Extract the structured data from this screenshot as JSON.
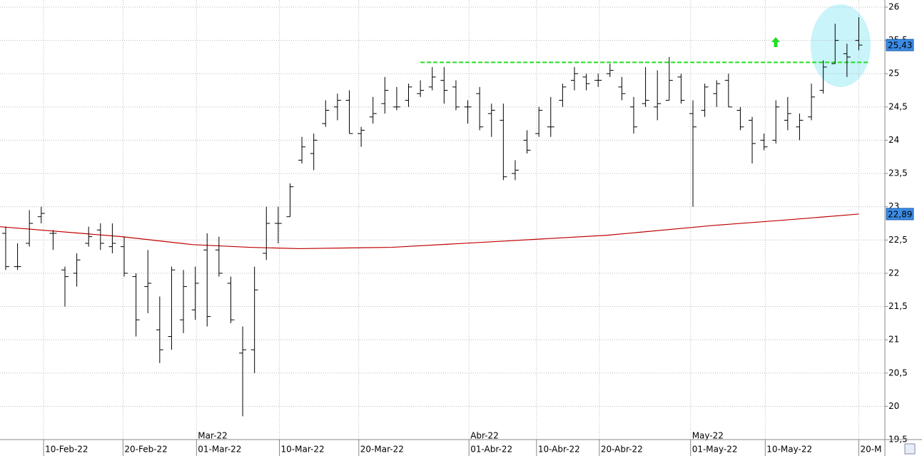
{
  "chart_data": {
    "type": "ohlc",
    "open": [
      22.6,
      22.1,
      22.45,
      22.85,
      22.6,
      22.05,
      22.0,
      22.45,
      22.65,
      22.4,
      22.4,
      21.95,
      21.8,
      21.15,
      21.05,
      21.3,
      21.45,
      22.35,
      22.35,
      21.85,
      20.8,
      20.85,
      22.3,
      22.75,
      22.85,
      23.7,
      23.8,
      24.25,
      24.5,
      24.6,
      24.1,
      24.35,
      24.55,
      24.5,
      24.6,
      24.7,
      24.8,
      24.9,
      24.8,
      24.5,
      24.7,
      24.4,
      24.3,
      23.5,
      24.0,
      24.1,
      24.2,
      24.6,
      24.9,
      24.95,
      24.9,
      25.0,
      24.8,
      24.5,
      24.55,
      24.5,
      24.6,
      24.95,
      24.4,
      24.45,
      24.7,
      24.9,
      24.45,
      24.3,
      24.0,
      24.0,
      24.3,
      24.2,
      24.35,
      24.75,
      25.15,
      25.3,
      25.5
    ],
    "high": [
      22.7,
      22.45,
      22.95,
      23.0,
      22.65,
      22.1,
      22.3,
      22.7,
      22.75,
      22.75,
      22.55,
      22.0,
      22.35,
      21.65,
      22.1,
      22.05,
      22.1,
      22.6,
      22.55,
      21.95,
      21.2,
      22.1,
      23.0,
      23.0,
      23.35,
      24.05,
      24.1,
      24.6,
      24.7,
      24.75,
      24.2,
      24.65,
      24.95,
      24.8,
      24.85,
      24.9,
      25.1,
      25.1,
      24.9,
      24.6,
      24.8,
      24.55,
      24.55,
      23.7,
      24.15,
      24.5,
      24.65,
      24.85,
      25.1,
      25.0,
      25.0,
      25.15,
      24.95,
      24.65,
      25.1,
      25.05,
      25.25,
      25.0,
      24.6,
      24.85,
      24.9,
      25.0,
      24.5,
      24.35,
      24.1,
      24.6,
      24.65,
      24.4,
      24.85,
      25.2,
      25.75,
      25.45,
      25.85
    ],
    "low": [
      22.05,
      22.05,
      22.4,
      22.75,
      22.35,
      21.5,
      21.8,
      22.4,
      22.35,
      22.3,
      21.95,
      21.05,
      21.4,
      20.65,
      20.85,
      21.1,
      21.3,
      21.2,
      21.95,
      21.25,
      19.85,
      20.5,
      22.2,
      22.45,
      22.85,
      23.65,
      23.55,
      24.2,
      24.3,
      24.1,
      23.9,
      24.25,
      24.4,
      24.45,
      24.5,
      24.65,
      24.75,
      24.55,
      24.45,
      24.25,
      24.15,
      24.05,
      23.4,
      23.4,
      23.8,
      24.05,
      24.05,
      24.5,
      24.75,
      24.75,
      24.8,
      24.95,
      24.6,
      24.1,
      24.5,
      24.3,
      24.6,
      24.55,
      23.0,
      24.35,
      24.5,
      24.5,
      24.15,
      23.65,
      23.85,
      23.95,
      24.15,
      24.0,
      24.3,
      24.7,
      25.15,
      24.95,
      25.35
    ],
    "close": [
      22.1,
      22.1,
      22.75,
      22.9,
      22.6,
      21.95,
      22.2,
      22.55,
      22.45,
      22.45,
      22.0,
      21.3,
      21.85,
      20.85,
      22.05,
      21.8,
      21.85,
      21.35,
      22.0,
      21.3,
      20.85,
      21.75,
      22.75,
      22.75,
      23.3,
      23.9,
      24.0,
      24.45,
      24.6,
      24.1,
      24.15,
      24.4,
      24.75,
      24.5,
      24.8,
      24.75,
      24.95,
      24.75,
      24.5,
      24.5,
      24.2,
      24.45,
      23.45,
      23.55,
      23.85,
      24.45,
      24.2,
      24.8,
      25.0,
      24.85,
      24.9,
      25.05,
      24.7,
      24.2,
      24.6,
      24.55,
      24.9,
      24.6,
      24.2,
      24.8,
      24.85,
      24.5,
      24.2,
      23.95,
      23.9,
      24.5,
      24.4,
      24.3,
      24.65,
      25.1,
      25.5,
      25.25,
      25.43
    ],
    "close_label": "25,43",
    "moving_average": {
      "color": "#c00000",
      "x": [
        -0.5,
        9.8,
        15.8,
        20.6,
        24.8,
        32.6,
        41.7,
        50.7,
        59.8,
        65.8,
        72
      ],
      "values": [
        22.7,
        22.55,
        22.43,
        22.39,
        22.37,
        22.39,
        22.48,
        22.57,
        22.72,
        22.8,
        22.89
      ],
      "last_label": "22,89"
    },
    "resistance": {
      "value": 25.17,
      "x": [
        35,
        72.8
      ],
      "color": "#22dd22"
    },
    "xlim": [
      -0.48,
      74.2
    ],
    "ylim": [
      19.5,
      26
    ],
    "yticks": [
      {
        "value": 19.5,
        "label": "19,5"
      },
      20,
      {
        "value": 20.5,
        "label": "20,5"
      },
      21,
      {
        "value": 21.5,
        "label": "21,5"
      },
      22,
      {
        "value": 22.5,
        "label": "22,5"
      },
      23,
      {
        "value": 23.5,
        "label": "23,5"
      },
      24,
      {
        "value": 24.5,
        "label": "24,5"
      },
      25,
      {
        "value": 25.5,
        "label": "25,5"
      },
      26
    ],
    "xticks": [
      {
        "value": 3.2,
        "label": "10-Feb-22"
      },
      {
        "value": 9.9,
        "label": "20-Feb-22"
      },
      {
        "value": 16.1,
        "label": "01-Mar-22"
      },
      {
        "value": 23.1,
        "label": "10-Mar-22"
      },
      {
        "value": 29.8,
        "label": "20-Mar-22"
      },
      {
        "value": 39.1,
        "label": "01-Abr-22"
      },
      {
        "value": 44.8,
        "label": "10-Abr-22"
      },
      {
        "value": 50.1,
        "label": "20-Abr-22"
      },
      {
        "value": 57.8,
        "label": "01-May-22"
      },
      {
        "value": 64.1,
        "label": "10-May-22"
      },
      {
        "value": 72,
        "label": "20-M"
      }
    ],
    "month_labels": [
      {
        "value": 16.1,
        "label": "Mar-22"
      },
      {
        "value": 39.1,
        "label": "Abr-22"
      },
      {
        "value": 57.8,
        "label": "May-22"
      }
    ],
    "grid": true
  }
}
